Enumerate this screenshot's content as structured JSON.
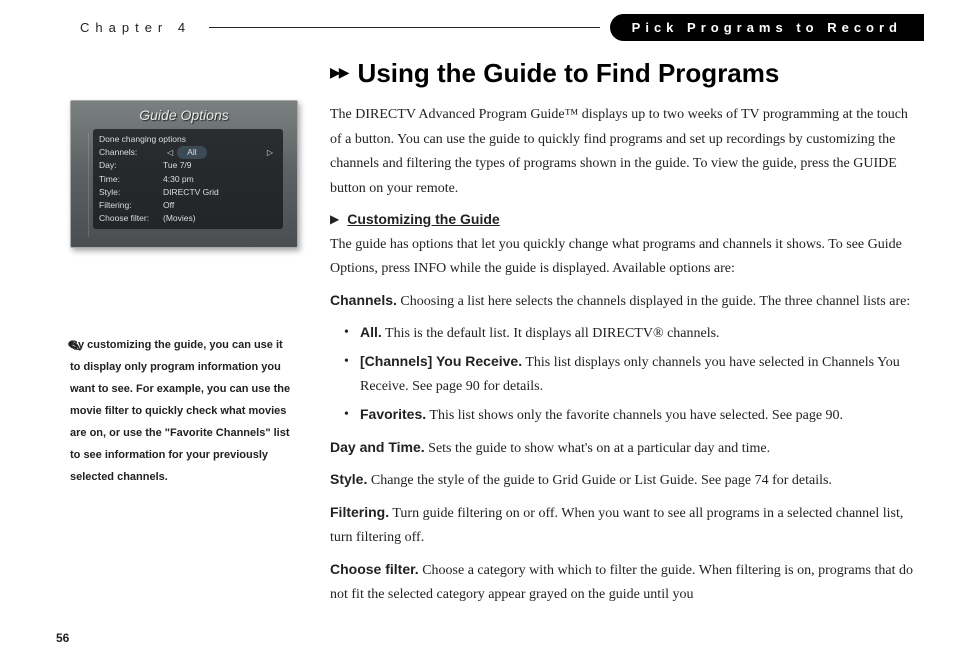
{
  "header": {
    "chapter": "Chapter 4",
    "section": "Pick Programs to Record"
  },
  "title": "Using the Guide to Find Programs",
  "intro": "The DIRECTV Advanced Program Guide™ displays up to two weeks of TV programming at the touch of a button. You can use the guide to quickly find programs and set up recordings by customizing the channels and filtering the types of programs shown in the guide. To view the guide, press the GUIDE button on your remote.",
  "subhead": "Customizing the Guide",
  "sub_intro": "The guide has options that let you quickly change what programs and channels it shows. To see Guide Options, press INFO while the guide is displayed. Available options are:",
  "channels_lead": "Channels.",
  "channels_text": " Choosing a list here selects the channels displayed in the guide. The three channel lists are:",
  "bullets": {
    "all_lead": "All.",
    "all_text": " This is the default list. It displays all DIRECTV® channels.",
    "recv_lead": "[Channels] You Receive.",
    "recv_text": " This list displays only channels you have selected in Channels You Receive. See page 90 for details.",
    "fav_lead": "Favorites.",
    "fav_text": " This list shows only the favorite channels you have selected. See page 90."
  },
  "daytime_lead": "Day and Time.",
  "daytime_text": " Sets the guide to show what's on at a particular day and time.",
  "style_lead": "Style.",
  "style_text": " Change the style of the guide to Grid Guide or List Guide. See page 74 for details.",
  "filtering_lead": "Filtering.",
  "filtering_text": " Turn guide filtering on or off. When you want to see all programs in a selected channel list, turn filtering off.",
  "choose_lead": "Choose filter.",
  "choose_text": " Choose a category with which to filter the guide. When filtering is on, programs that do not fit the selected category appear grayed on the guide until you",
  "guide": {
    "title": "Guide Options",
    "rows": {
      "done": "Done changing options",
      "chan_l": "Channels:",
      "chan_v": "All",
      "day_l": "Day:",
      "day_v": "Tue 7/9",
      "time_l": "Time:",
      "time_v": "4:30 pm",
      "style_l": "Style:",
      "style_v": "DIRECTV Grid",
      "filt_l": "Filtering:",
      "filt_v": "Off",
      "cf_l": "Choose filter:",
      "cf_v": "(Movies)"
    }
  },
  "tip": "By customizing the guide, you can use it to display only program information you want to see. For example, you can use the movie filter to quickly check what movies are on, or use the \"Favorite Channels\" list to see information for your previously selected channels.",
  "page": "56"
}
